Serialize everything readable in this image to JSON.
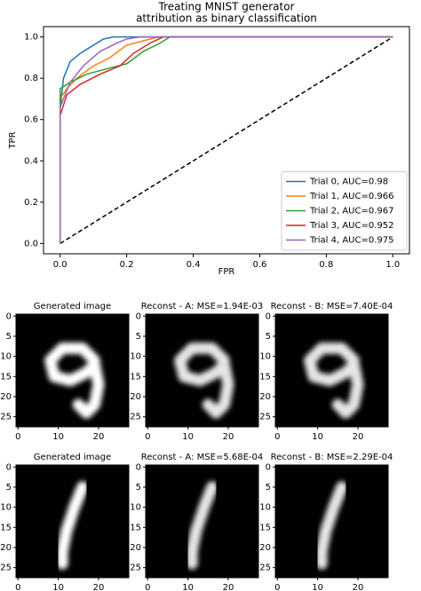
{
  "chart_data": {
    "type": "line",
    "title": [
      "Treating MNIST generator",
      "attribution as binary classification"
    ],
    "x_label": "FPR",
    "y_label": "TPR",
    "xlim": [
      -0.05,
      1.05
    ],
    "ylim": [
      -0.05,
      1.05
    ],
    "xticks": [
      {
        "value": 0,
        "label": "0.0"
      },
      {
        "value": 0.2,
        "label": "0.2"
      },
      {
        "value": 0.4,
        "label": "0.4"
      },
      {
        "value": 0.6,
        "label": "0.6"
      },
      {
        "value": 0.8,
        "label": "0.8"
      },
      {
        "value": 1,
        "label": "1.0"
      }
    ],
    "yticks": [
      {
        "value": 0,
        "label": "0.0"
      },
      {
        "value": 0.2,
        "label": "0.2"
      },
      {
        "value": 0.4,
        "label": "0.4"
      },
      {
        "value": 0.6,
        "label": "0.6"
      },
      {
        "value": 0.8,
        "label": "0.8"
      },
      {
        "value": 1,
        "label": "1.0"
      }
    ],
    "legend": "lower right",
    "diagonal": {
      "x": [
        0,
        1
      ],
      "values": [
        0,
        1
      ],
      "color": "#000000"
    },
    "series": [
      {
        "name": "Trial 0, AUC=0.98",
        "color": "#1f77b4",
        "x": [
          0,
          0,
          0.01,
          0.03,
          0.06,
          0.1,
          0.13,
          0.16,
          1
        ],
        "values": [
          0,
          0.65,
          0.8,
          0.88,
          0.92,
          0.96,
          0.99,
          1,
          1
        ]
      },
      {
        "name": "Trial 1, AUC=0.966",
        "color": "#ff7f0e",
        "x": [
          0,
          0,
          0.02,
          0.05,
          0.1,
          0.15,
          0.2,
          0.27,
          0.3,
          1
        ],
        "values": [
          0,
          0.7,
          0.75,
          0.8,
          0.86,
          0.9,
          0.96,
          0.99,
          1,
          1
        ]
      },
      {
        "name": "Trial 2, AUC=0.967",
        "color": "#2ca02c",
        "x": [
          0,
          0,
          0.03,
          0.08,
          0.15,
          0.2,
          0.25,
          0.3,
          0.33,
          1
        ],
        "values": [
          0,
          0.75,
          0.78,
          0.82,
          0.85,
          0.87,
          0.93,
          0.97,
          1,
          1
        ]
      },
      {
        "name": "Trial 3, AUC=0.952",
        "color": "#d62728",
        "x": [
          0,
          0,
          0.02,
          0.06,
          0.12,
          0.18,
          0.22,
          0.27,
          0.31,
          1
        ],
        "values": [
          0,
          0.62,
          0.72,
          0.77,
          0.82,
          0.86,
          0.92,
          0.97,
          1,
          1
        ]
      },
      {
        "name": "Trial 4, AUC=0.975",
        "color": "#9467bd",
        "x": [
          0,
          0,
          0.03,
          0.07,
          0.12,
          0.17,
          0.2,
          0.24,
          1
        ],
        "values": [
          0,
          0.66,
          0.78,
          0.86,
          0.93,
          0.97,
          0.99,
          1,
          1
        ]
      }
    ]
  },
  "image_grid": {
    "xlim": [
      -0.5,
      27.5
    ],
    "ylim": [
      27.5,
      -0.5
    ],
    "xticks": [
      0,
      10,
      20
    ],
    "yticks": [
      0,
      5,
      10,
      15,
      20,
      25
    ],
    "rows": [
      [
        "Generated image",
        "Reconst - A: MSE=1.94E-03",
        "Reconst - B: MSE=7.40E-04"
      ],
      [
        "Generated image",
        "Reconst - A: MSE=5.68E-04",
        "Reconst - B: MSE=2.29E-04"
      ]
    ]
  }
}
